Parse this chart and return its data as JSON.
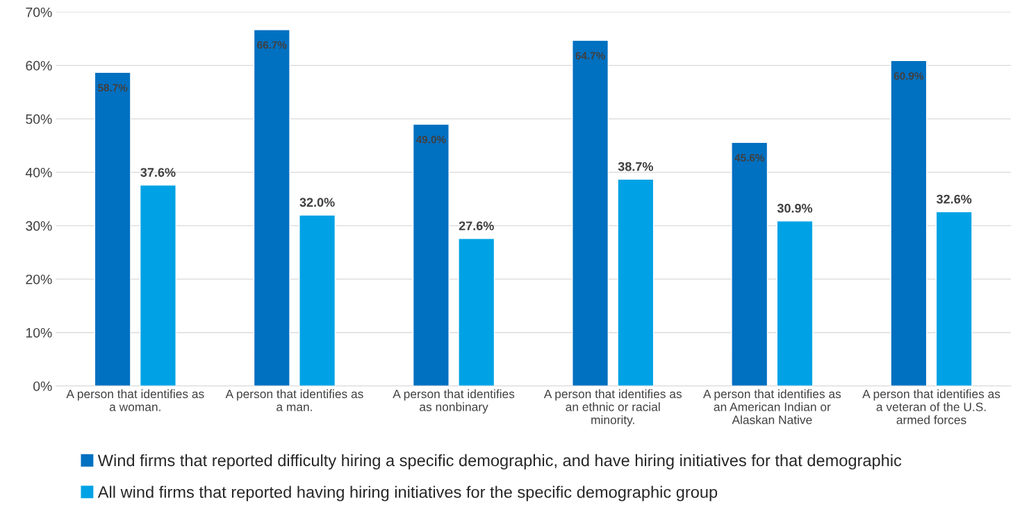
{
  "chart_data": {
    "type": "bar",
    "categories": [
      "A person that identifies as\na woman.",
      "A person that identifies as\na man.",
      "A person that identifies\nas nonbinary",
      "A person that identifies as\nan ethnic or racial\nminority.",
      "A person that identifies as\nan American Indian or\nAlaskan Native",
      "A person that identifies as\na veteran of the U.S.\narmed forces"
    ],
    "series": [
      {
        "name": "Wind firms that reported difficulty hiring a specific demographic, and have hiring initiatives for that demographic",
        "color": "#0070c0",
        "values": [
          58.7,
          66.7,
          49.0,
          64.7,
          45.6,
          60.9
        ],
        "value_labels": [
          "58.7%",
          "66.7%",
          "49.0%",
          "64.7%",
          "45.6%",
          "60.9%"
        ]
      },
      {
        "name": "All wind firms that reported having hiring initiatives for the specific demographic group",
        "color": "#00a2e5",
        "values": [
          37.6,
          32.0,
          27.6,
          38.7,
          30.9,
          32.6
        ],
        "value_labels": [
          "37.6%",
          "32.0%",
          "27.6%",
          "38.7%",
          "30.9%",
          "32.6%"
        ]
      }
    ],
    "ylim": [
      0,
      70
    ],
    "yticks": [
      {
        "value": 0,
        "label": "0%"
      },
      {
        "value": 10,
        "label": "10%"
      },
      {
        "value": 20,
        "label": "20%"
      },
      {
        "value": 30,
        "label": "30%"
      },
      {
        "value": 40,
        "label": "40%"
      },
      {
        "value": 50,
        "label": "50%"
      },
      {
        "value": 60,
        "label": "60%"
      },
      {
        "value": 70,
        "label": "70%"
      }
    ],
    "grid": "y",
    "legend": "bottom"
  }
}
